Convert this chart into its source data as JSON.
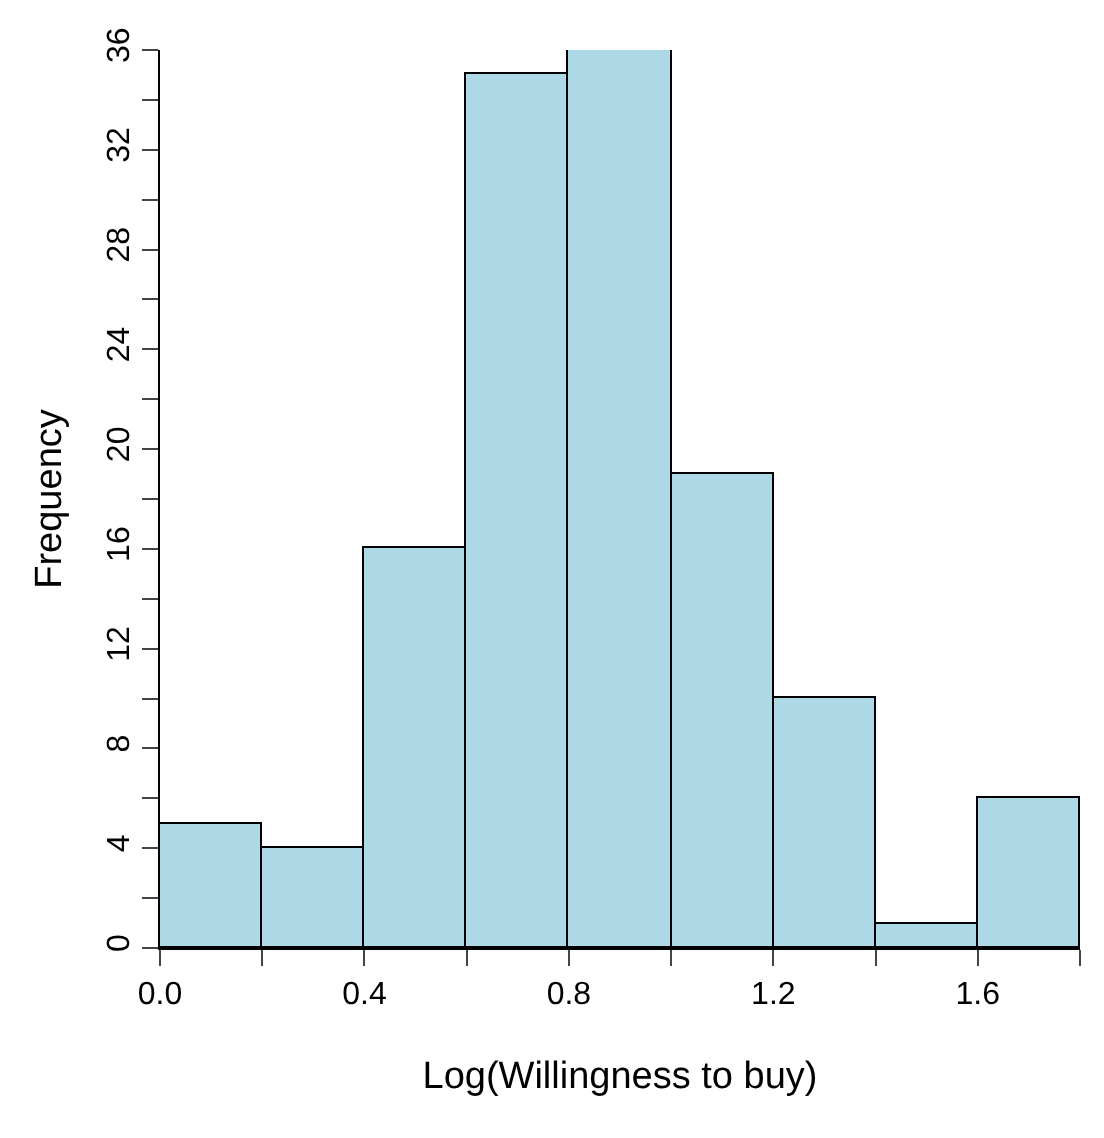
{
  "chart_data": {
    "type": "histogram",
    "xlabel": "Log(Willingness to buy)",
    "ylabel": "Frequency",
    "bins": [
      0,
      0.2,
      0.4,
      0.6,
      0.8,
      1.0,
      1.2,
      1.4,
      1.6,
      1.8
    ],
    "values": [
      5,
      4,
      16,
      35,
      36,
      19,
      10,
      1,
      6
    ],
    "color": "#add8e6",
    "xlim": [
      0,
      1.8
    ],
    "xticks": [
      {
        "value": 0,
        "label": "0.0"
      },
      {
        "value": 0.2,
        "label": null
      },
      {
        "value": 0.4,
        "label": "0.4"
      },
      {
        "value": 0.6,
        "label": null
      },
      {
        "value": 0.8,
        "label": "0.8"
      },
      {
        "value": 1.0,
        "label": null
      },
      {
        "value": 1.2,
        "label": "1.2"
      },
      {
        "value": 1.4,
        "label": null
      },
      {
        "value": 1.6,
        "label": "1.6"
      },
      {
        "value": 1.8,
        "label": null
      }
    ],
    "ylim": [
      0,
      36
    ],
    "yticks": [
      0,
      {
        "value": 2,
        "label": null
      },
      4,
      {
        "value": 6,
        "label": null
      },
      8,
      {
        "value": 10,
        "label": null
      },
      12,
      {
        "value": 14,
        "label": null
      },
      16,
      {
        "value": 18,
        "label": null
      },
      20,
      {
        "value": 22,
        "label": null
      },
      24,
      {
        "value": 26,
        "label": null
      },
      28,
      {
        "value": 30,
        "label": null
      },
      32,
      {
        "value": 34,
        "label": null
      },
      36
    ]
  }
}
